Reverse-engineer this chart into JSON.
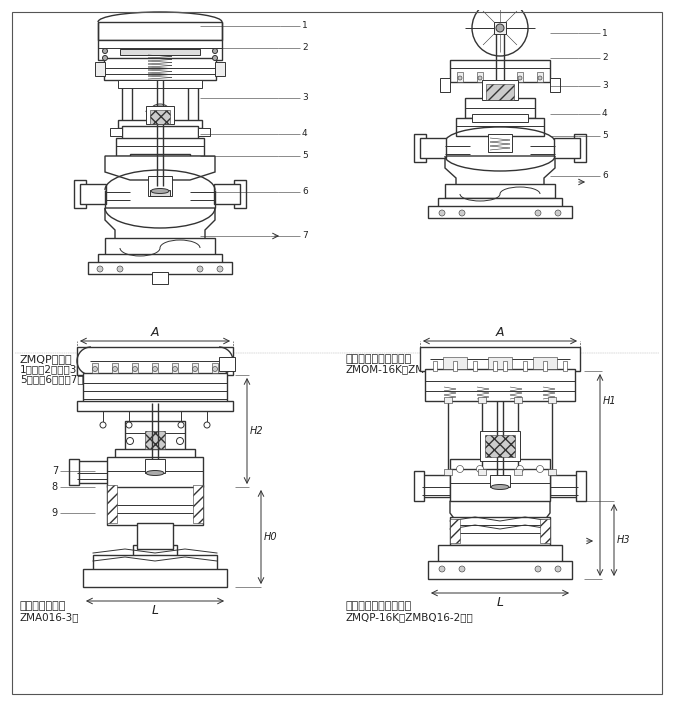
{
  "bg_color": "#ffffff",
  "line_color": "#333333",
  "text_color": "#222222",
  "title_top_left_1": "ZMQP单座型",
  "title_top_left_2": "1、膜片2、推杆3、支架4、阀杆",
  "title_top_left_3": "5、阀芯6、阀座7、阀体",
  "title_top_right_1": "套筒切断阀（带手轮）",
  "title_top_right_2": "ZMOM-16K（ZMBM16-2）型",
  "title_bot_left_1": "二位三通切断阀",
  "title_bot_left_2": "ZMA016-3型",
  "title_bot_right_1": "单座切断阀（立柱式）",
  "title_bot_right_2": "ZMQP-16K（ZMBQ16-2）型",
  "fig_width": 6.54,
  "fig_height": 6.86,
  "dpi": 100
}
